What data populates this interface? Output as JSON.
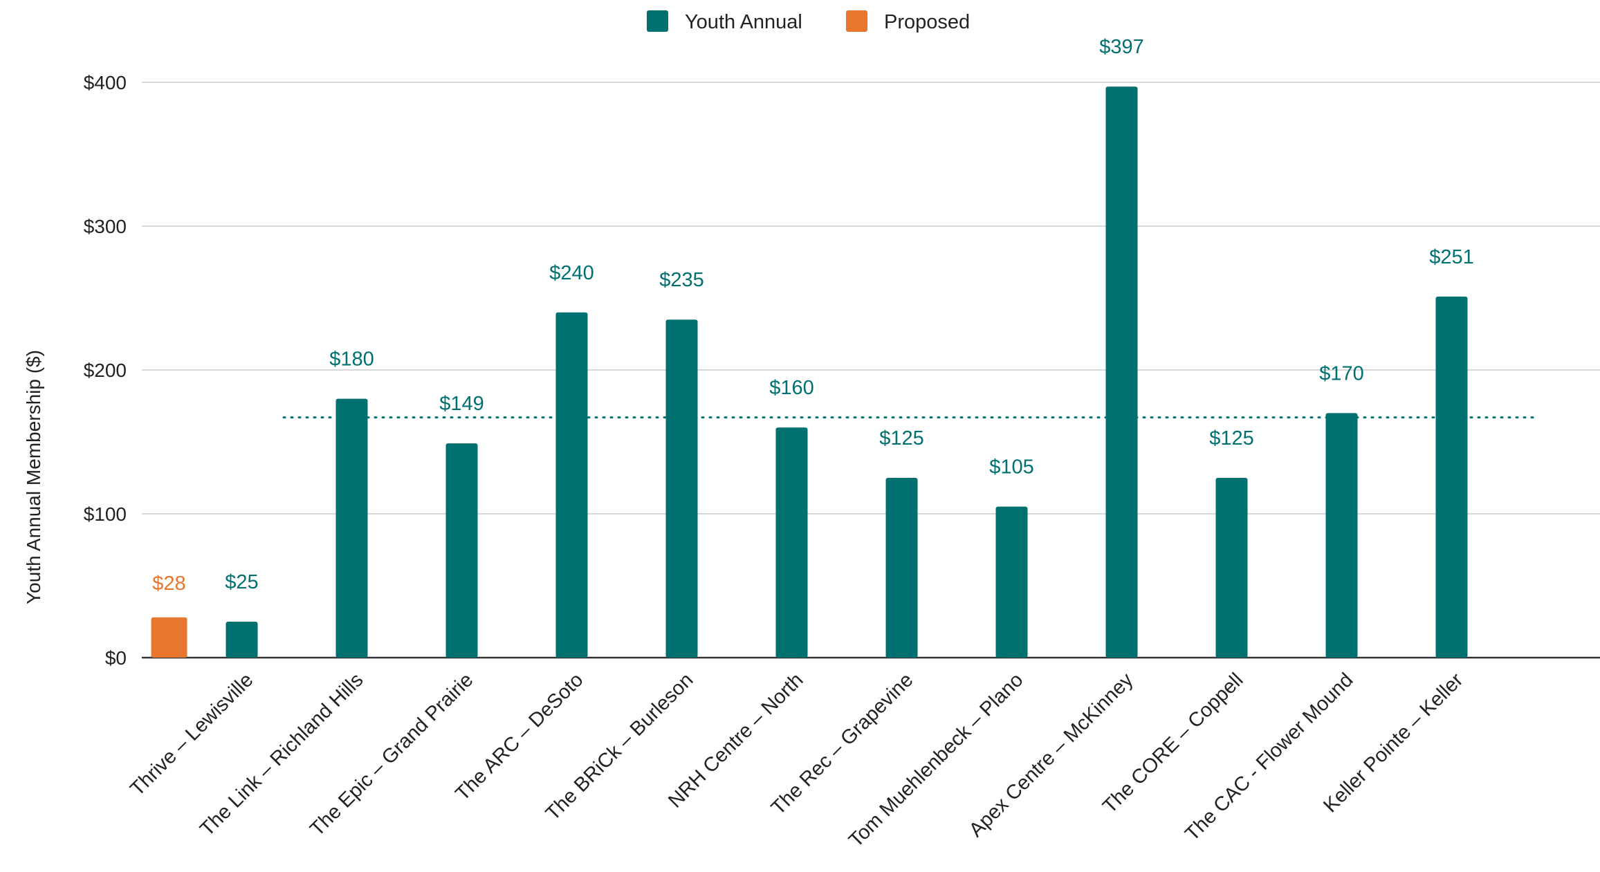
{
  "chart_data": {
    "type": "bar",
    "title": "",
    "xlabel": "",
    "ylabel": "Youth Annual Membership ($)",
    "ylim": [
      0,
      430
    ],
    "yticks": [
      0,
      100,
      200,
      300,
      400
    ],
    "ytick_labels": [
      "$0",
      "$100",
      "$200",
      "$300",
      "$400"
    ],
    "grid": true,
    "legend_position": "top-center",
    "categories": [
      "Thrive – Lewisville",
      "The Link – Richland Hills",
      "The Epic – Grand Prairie",
      "The ARC – DeSoto",
      "The BRiCk – Burleson",
      "NRH Centre – North",
      "The Rec – Grapevine",
      "Tom Muehlenbeck – Plano",
      "Apex Centre – McKinney",
      "The CORE – Coppell",
      "The CAC - Flower Mound",
      "Keller Pointe – Keller"
    ],
    "series": [
      {
        "name": "Youth Annual",
        "color": "#007070",
        "values": [
          25,
          180,
          149,
          240,
          235,
          160,
          125,
          105,
          397,
          125,
          170,
          251
        ],
        "labels": [
          "$25",
          "$180",
          "$149",
          "$240",
          "$235",
          "$160",
          "$125",
          "$105",
          "$397",
          "$125",
          "$170",
          "$251"
        ]
      },
      {
        "name": "Proposed",
        "color": "#E8762D",
        "values": [
          28,
          null,
          null,
          null,
          null,
          null,
          null,
          null,
          null,
          null,
          null,
          null
        ],
        "labels": [
          "$28",
          "",
          "",
          "",
          "",
          "",
          "",
          "",
          "",
          "",
          "",
          ""
        ]
      }
    ],
    "reference_line": {
      "value": 180,
      "style": "dotted",
      "color": "#007070"
    }
  }
}
